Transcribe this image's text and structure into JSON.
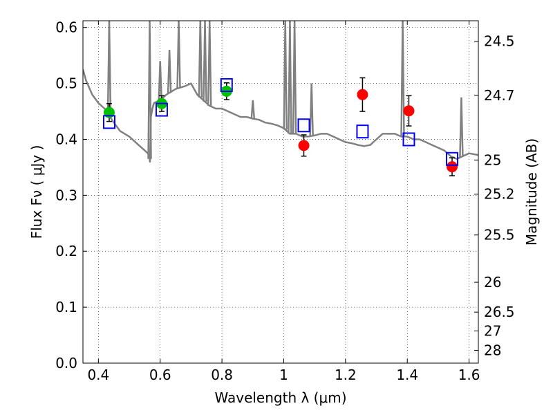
{
  "chart_data": {
    "type": "scatter",
    "xlabel": "Wavelength  λ (μm)",
    "ylabel": "Flux  Fν  ( μJy )",
    "y2label": "Magnitude (AB)",
    "xlim": [
      0.35,
      1.63
    ],
    "ylim": [
      0.0,
      0.612
    ],
    "grid": true,
    "xticks": [
      0.4,
      0.6,
      0.8,
      1.0,
      1.2,
      1.4,
      1.6
    ],
    "xtick_labels": [
      "0.4",
      "0.6",
      "0.8",
      "1",
      "1.2",
      "1.4",
      "1.6"
    ],
    "yticks": [
      0.0,
      0.1,
      0.2,
      0.3,
      0.4,
      0.5,
      0.6
    ],
    "ytick_labels": [
      "0.0",
      "0.1",
      "0.2",
      "0.3",
      "0.4",
      "0.5",
      "0.6"
    ],
    "y2ticks": [
      {
        "label": "24.5",
        "mag": 24.5
      },
      {
        "label": "24.7",
        "mag": 24.7
      },
      {
        "label": "25",
        "mag": 25.0
      },
      {
        "label": "25.2",
        "mag": 25.2
      },
      {
        "label": "25.5",
        "mag": 25.5
      },
      {
        "label": "26",
        "mag": 26.0
      },
      {
        "label": "26.5",
        "mag": 26.5
      },
      {
        "label": "27",
        "mag": 27.0
      },
      {
        "label": "28",
        "mag": 28.0
      }
    ],
    "series": [
      {
        "kind": "line",
        "color": "#808080",
        "x": [
          0.35,
          0.36,
          0.38,
          0.4,
          0.42,
          0.43,
          0.435,
          0.44,
          0.45,
          0.47,
          0.5,
          0.53,
          0.55,
          0.56,
          0.565,
          0.567,
          0.57,
          0.575,
          0.58,
          0.6,
          0.62,
          0.65,
          0.68,
          0.7,
          0.72,
          0.74,
          0.76,
          0.78,
          0.8,
          0.82,
          0.84,
          0.86,
          0.88,
          0.9,
          0.92,
          0.94,
          0.96,
          0.98,
          1.0,
          1.02,
          1.04,
          1.06,
          1.08,
          1.1,
          1.12,
          1.14,
          1.16,
          1.18,
          1.2,
          1.22,
          1.24,
          1.26,
          1.28,
          1.3,
          1.32,
          1.34,
          1.36,
          1.38,
          1.4,
          1.42,
          1.44,
          1.46,
          1.48,
          1.5,
          1.52,
          1.54,
          1.56,
          1.58,
          1.6,
          1.63
        ],
        "y": [
          0.525,
          0.505,
          0.48,
          0.465,
          0.455,
          0.45,
          0.445,
          0.438,
          0.43,
          0.415,
          0.405,
          0.39,
          0.38,
          0.375,
          0.37,
          0.36,
          0.44,
          0.455,
          0.465,
          0.47,
          0.48,
          0.49,
          0.495,
          0.5,
          0.48,
          0.47,
          0.46,
          0.455,
          0.455,
          0.45,
          0.445,
          0.44,
          0.44,
          0.437,
          0.435,
          0.43,
          0.428,
          0.425,
          0.42,
          0.41,
          0.41,
          0.405,
          0.405,
          0.407,
          0.41,
          0.41,
          0.405,
          0.4,
          0.395,
          0.393,
          0.39,
          0.388,
          0.39,
          0.4,
          0.41,
          0.41,
          0.41,
          0.405,
          0.405,
          0.4,
          0.4,
          0.395,
          0.39,
          0.385,
          0.38,
          0.37,
          0.365,
          0.37,
          0.375,
          0.372
        ],
        "spikes": [
          {
            "x": 0.435,
            "peak": 0.612
          },
          {
            "x": 0.566,
            "peak": 0.612
          },
          {
            "x": 0.6,
            "peak": 0.54
          },
          {
            "x": 0.63,
            "peak": 0.56
          },
          {
            "x": 0.66,
            "peak": 0.612
          },
          {
            "x": 0.73,
            "peak": 0.612
          },
          {
            "x": 0.745,
            "peak": 0.612
          },
          {
            "x": 0.76,
            "peak": 0.612
          },
          {
            "x": 0.9,
            "peak": 0.47
          },
          {
            "x": 1.005,
            "peak": 0.612
          },
          {
            "x": 1.02,
            "peak": 0.612
          },
          {
            "x": 1.035,
            "peak": 0.612
          },
          {
            "x": 1.09,
            "peak": 0.5
          },
          {
            "x": 1.385,
            "peak": 0.612
          },
          {
            "x": 1.575,
            "peak": 0.475
          }
        ]
      },
      {
        "kind": "points",
        "marker": "circle",
        "color": "#00c000",
        "x": [
          0.435,
          0.605,
          0.815
        ],
        "y": [
          0.448,
          0.464,
          0.486
        ],
        "yerr": [
          0.016,
          0.014,
          0.015
        ]
      },
      {
        "kind": "points",
        "marker": "circle",
        "color": "#ff0000",
        "x": [
          1.065,
          1.255,
          1.405,
          1.545
        ],
        "y": [
          0.389,
          0.48,
          0.451,
          0.351
        ],
        "yerr": [
          0.019,
          0.03,
          0.027,
          0.016
        ]
      },
      {
        "kind": "points",
        "marker": "open-square",
        "color": "#0000ff",
        "x": [
          0.435,
          0.605,
          0.815,
          1.065,
          1.255,
          1.405,
          1.545
        ],
        "y": [
          0.431,
          0.453,
          0.497,
          0.425,
          0.414,
          0.4,
          0.365
        ]
      }
    ]
  }
}
